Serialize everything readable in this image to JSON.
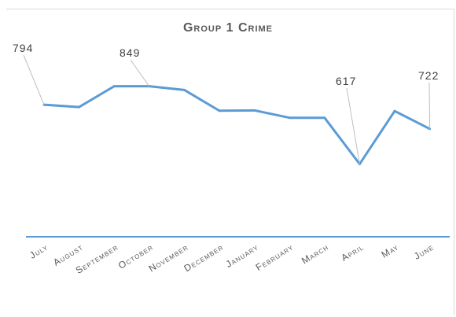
{
  "chart_data": {
    "type": "line",
    "title": "Group 1 Crime",
    "xlabel": "",
    "ylabel": "",
    "categories": [
      "July",
      "August",
      "September",
      "October",
      "November",
      "December",
      "January",
      "February",
      "March",
      "April",
      "May",
      "June"
    ],
    "series": [
      {
        "values": [
          794,
          787,
          849,
          849,
          838,
          776,
          777,
          755,
          755,
          617,
          775,
          722
        ]
      }
    ],
    "data_labels": [
      {
        "index": 0,
        "text": "794"
      },
      {
        "index": 3,
        "text": "849"
      },
      {
        "index": 9,
        "text": "617"
      },
      {
        "index": 11,
        "text": "722"
      }
    ],
    "ylim": [
      400,
      1050
    ],
    "grid": false,
    "line_color": "#5b9bd5",
    "axis_color": "#5b9bd5"
  }
}
